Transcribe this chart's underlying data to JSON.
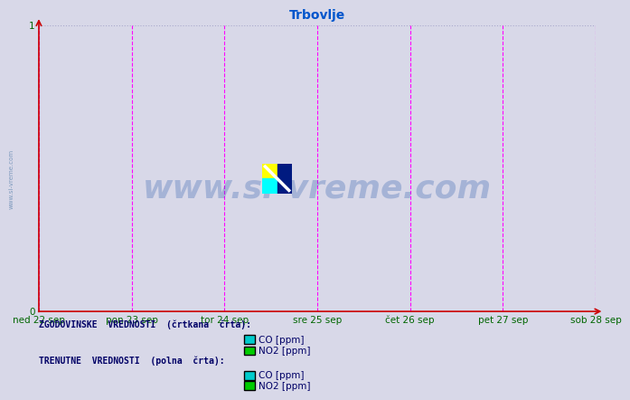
{
  "title": "Trbovlje",
  "title_color": "#0055cc",
  "title_fontsize": 10,
  "background_color": "#d8d8e8",
  "plot_bg_color": "#d8d8e8",
  "xlim": [
    0,
    1
  ],
  "ylim": [
    0,
    1
  ],
  "yticks": [
    0,
    1
  ],
  "xtick_labels": [
    "ned 22 sep",
    "pon 23 sep",
    "tor 24 sep",
    "sre 25 sep",
    "čet 26 sep",
    "pet 27 sep",
    "sob 28 sep"
  ],
  "xtick_positions": [
    0.0,
    0.1667,
    0.3333,
    0.5,
    0.6667,
    0.8333,
    1.0
  ],
  "vline_positions": [
    0.0,
    0.1667,
    0.3333,
    0.5,
    0.6667,
    0.8333,
    1.0
  ],
  "vline_color": "#ff00ff",
  "vline_style": "--",
  "hgrid_color": "#aaaacc",
  "hgrid_style": ":",
  "axis_color": "#cc0000",
  "tick_color": "#006600",
  "watermark_text": "www.si-vreme.com",
  "watermark_color": "#2255aa",
  "watermark_alpha": 0.28,
  "watermark_fontsize": 26,
  "side_text": "www.si-vreme.com",
  "side_text_color": "#336699",
  "legend_title1": "ZGODOVINSKE  VREDNOSTI  (črtkana  črta):",
  "legend_title2": "TRENUTNE  VREDNOSTI  (polna  črta):",
  "legend_items": [
    "CO [ppm]",
    "NO2 [ppm]"
  ],
  "legend_colors_hist": [
    "#00cccc",
    "#00cc00"
  ],
  "legend_colors_curr": [
    "#00cccc",
    "#00cc00"
  ],
  "legend_text_color": "#000066",
  "legend_title_color": "#000066"
}
